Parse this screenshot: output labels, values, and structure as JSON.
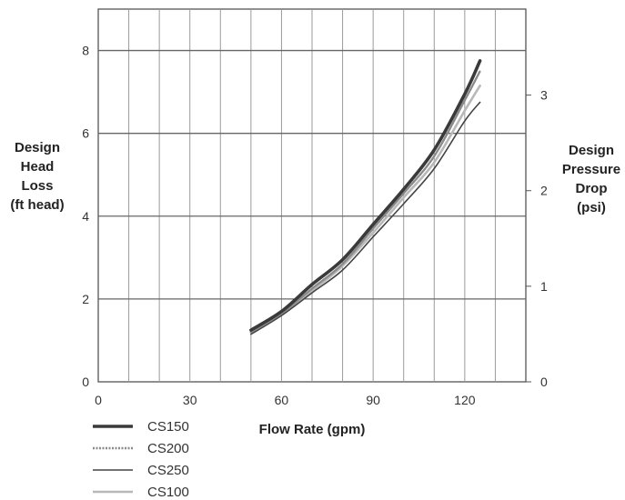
{
  "chart_data": {
    "type": "line",
    "xlabel": "Flow Rate (gpm)",
    "ylabel": [
      "Design",
      "Head",
      "Loss",
      "(ft head)"
    ],
    "ylabel_right": [
      "Design",
      "Pressure",
      "Drop",
      "(psi)"
    ],
    "xlim": [
      0,
      140
    ],
    "ylim": [
      0,
      9
    ],
    "ylim_right": [
      0,
      3.9
    ],
    "x_ticks": [
      0,
      30,
      60,
      90,
      120
    ],
    "y_ticks": [
      0,
      2,
      4,
      6,
      8
    ],
    "y_ticks_right": [
      0,
      1,
      2,
      3
    ],
    "grid": true,
    "legend_position": "bottom-left",
    "series": [
      {
        "name": "CS150",
        "color": "#3a3a3a",
        "style": "thick",
        "x": [
          50,
          60,
          70,
          80,
          90,
          100,
          110,
          120,
          125
        ],
        "y": [
          1.25,
          1.7,
          2.35,
          2.95,
          3.8,
          4.65,
          5.6,
          6.95,
          7.75
        ]
      },
      {
        "name": "CS200",
        "color": "#8a8a8a",
        "style": "dotted",
        "x": [
          50,
          60,
          70,
          80,
          90,
          100,
          110,
          120,
          125
        ],
        "y": [
          1.2,
          1.65,
          2.25,
          2.85,
          3.7,
          4.55,
          5.45,
          6.8,
          7.5
        ]
      },
      {
        "name": "CS250",
        "color": "#444444",
        "style": "thin",
        "x": [
          50,
          60,
          70,
          80,
          90,
          100,
          110,
          120,
          125
        ],
        "y": [
          1.15,
          1.6,
          2.15,
          2.7,
          3.5,
          4.3,
          5.15,
          6.3,
          6.75
        ]
      },
      {
        "name": "CS100",
        "color": "#b8b8b8",
        "style": "light",
        "x": [
          50,
          60,
          70,
          80,
          90,
          100,
          110,
          120,
          125
        ],
        "y": [
          1.2,
          1.65,
          2.2,
          2.8,
          3.6,
          4.45,
          5.3,
          6.55,
          7.15
        ]
      }
    ]
  }
}
